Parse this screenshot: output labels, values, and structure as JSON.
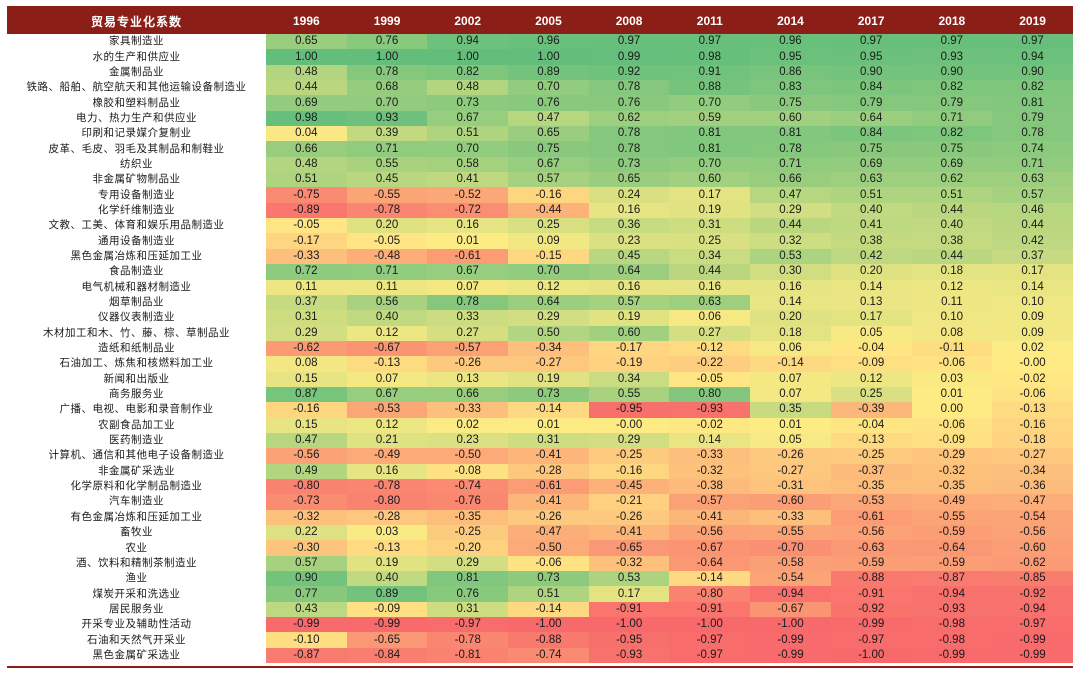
{
  "chart_data": {
    "type": "heatmap",
    "row_header": "贸易专业化系数",
    "columns": [
      "1996",
      "1999",
      "2002",
      "2005",
      "2008",
      "2011",
      "2014",
      "2017",
      "2018",
      "2019"
    ],
    "value_range": [
      -1,
      1
    ],
    "colors": {
      "low": "#F8696B",
      "mid": "#FFEB84",
      "high": "#63BE7B",
      "header_bg": "#8B1E16",
      "header_text": "#FFFFFF"
    },
    "rows": [
      {
        "name": "家具制造业",
        "values": [
          "0.65",
          "0.76",
          "0.94",
          "0.96",
          "0.97",
          "0.97",
          "0.96",
          "0.97",
          "0.97",
          "0.97"
        ]
      },
      {
        "name": "水的生产和供应业",
        "values": [
          "1.00",
          "1.00",
          "1.00",
          "1.00",
          "0.99",
          "0.98",
          "0.95",
          "0.95",
          "0.93",
          "0.94"
        ]
      },
      {
        "name": "金属制品业",
        "values": [
          "0.48",
          "0.78",
          "0.82",
          "0.89",
          "0.92",
          "0.91",
          "0.86",
          "0.90",
          "0.90",
          "0.90"
        ]
      },
      {
        "name": "铁路、船舶、航空航天和其他运输设备制造业",
        "values": [
          "0.44",
          "0.68",
          "0.48",
          "0.70",
          "0.78",
          "0.88",
          "0.83",
          "0.84",
          "0.82",
          "0.82"
        ]
      },
      {
        "name": "橡胶和塑料制品业",
        "values": [
          "0.69",
          "0.70",
          "0.73",
          "0.76",
          "0.76",
          "0.70",
          "0.75",
          "0.79",
          "0.79",
          "0.81"
        ]
      },
      {
        "name": "电力、热力生产和供应业",
        "values": [
          "0.98",
          "0.93",
          "0.67",
          "0.47",
          "0.62",
          "0.59",
          "0.60",
          "0.64",
          "0.71",
          "0.79"
        ]
      },
      {
        "name": "印刷和记录媒介复制业",
        "values": [
          "0.04",
          "0.39",
          "0.51",
          "0.65",
          "0.78",
          "0.81",
          "0.81",
          "0.84",
          "0.82",
          "0.78"
        ]
      },
      {
        "name": "皮革、毛皮、羽毛及其制品和制鞋业",
        "values": [
          "0.66",
          "0.71",
          "0.70",
          "0.75",
          "0.78",
          "0.81",
          "0.78",
          "0.75",
          "0.75",
          "0.74"
        ]
      },
      {
        "name": "纺织业",
        "values": [
          "0.48",
          "0.55",
          "0.58",
          "0.67",
          "0.73",
          "0.70",
          "0.71",
          "0.69",
          "0.69",
          "0.71"
        ]
      },
      {
        "name": "非金属矿物制品业",
        "values": [
          "0.51",
          "0.45",
          "0.41",
          "0.57",
          "0.65",
          "0.60",
          "0.66",
          "0.63",
          "0.62",
          "0.63"
        ]
      },
      {
        "name": "专用设备制造业",
        "values": [
          "-0.75",
          "-0.55",
          "-0.52",
          "-0.16",
          "0.24",
          "0.17",
          "0.47",
          "0.51",
          "0.51",
          "0.57"
        ]
      },
      {
        "name": "化学纤维制造业",
        "values": [
          "-0.89",
          "-0.78",
          "-0.72",
          "-0.44",
          "0.16",
          "0.19",
          "0.29",
          "0.40",
          "0.44",
          "0.46"
        ]
      },
      {
        "name": "文教、工美、体育和娱乐用品制造业",
        "values": [
          "-0.05",
          "0.20",
          "0.16",
          "0.25",
          "0.36",
          "0.31",
          "0.44",
          "0.41",
          "0.40",
          "0.44"
        ]
      },
      {
        "name": "通用设备制造业",
        "values": [
          "-0.17",
          "-0.05",
          "0.01",
          "0.09",
          "0.23",
          "0.25",
          "0.32",
          "0.38",
          "0.38",
          "0.42"
        ]
      },
      {
        "name": "黑色金属冶炼和压延加工业",
        "values": [
          "-0.33",
          "-0.48",
          "-0.61",
          "-0.15",
          "0.45",
          "0.34",
          "0.53",
          "0.42",
          "0.44",
          "0.37"
        ]
      },
      {
        "name": "食品制造业",
        "values": [
          "0.72",
          "0.71",
          "0.67",
          "0.70",
          "0.64",
          "0.44",
          "0.30",
          "0.20",
          "0.18",
          "0.17"
        ]
      },
      {
        "name": "电气机械和器材制造业",
        "values": [
          "0.11",
          "0.11",
          "0.07",
          "0.12",
          "0.16",
          "0.16",
          "0.16",
          "0.14",
          "0.12",
          "0.14"
        ]
      },
      {
        "name": "烟草制品业",
        "values": [
          "0.37",
          "0.56",
          "0.78",
          "0.64",
          "0.57",
          "0.63",
          "0.14",
          "0.13",
          "0.11",
          "0.10"
        ]
      },
      {
        "name": "仪器仪表制造业",
        "values": [
          "0.31",
          "0.40",
          "0.33",
          "0.29",
          "0.19",
          "0.06",
          "0.20",
          "0.17",
          "0.10",
          "0.09"
        ]
      },
      {
        "name": "木材加工和木、竹、藤、棕、草制品业",
        "values": [
          "0.29",
          "0.12",
          "0.27",
          "0.50",
          "0.60",
          "0.27",
          "0.18",
          "0.05",
          "0.08",
          "0.09"
        ]
      },
      {
        "name": "造纸和纸制品业",
        "values": [
          "-0.62",
          "-0.67",
          "-0.57",
          "-0.34",
          "-0.17",
          "-0.12",
          "0.06",
          "-0.04",
          "-0.11",
          "0.02"
        ]
      },
      {
        "name": "石油加工、炼焦和核燃料加工业",
        "values": [
          "0.08",
          "-0.13",
          "-0.26",
          "-0.27",
          "-0.19",
          "-0.22",
          "-0.14",
          "-0.09",
          "-0.06",
          "-0.00"
        ]
      },
      {
        "name": "新闻和出版业",
        "values": [
          "0.15",
          "0.07",
          "0.13",
          "0.19",
          "0.34",
          "-0.05",
          "0.07",
          "0.12",
          "0.03",
          "-0.02"
        ]
      },
      {
        "name": "商务服务业",
        "values": [
          "0.87",
          "0.67",
          "0.66",
          "0.73",
          "0.55",
          "0.80",
          "0.07",
          "0.25",
          "0.01",
          "-0.06"
        ]
      },
      {
        "name": "广播、电视、电影和录音制作业",
        "values": [
          "-0.16",
          "-0.53",
          "-0.33",
          "-0.14",
          "-0.95",
          "-0.93",
          "0.35",
          "-0.39",
          "0.00",
          "-0.13"
        ]
      },
      {
        "name": "农副食品加工业",
        "values": [
          "0.15",
          "0.12",
          "0.02",
          "0.01",
          "-0.00",
          "-0.02",
          "0.01",
          "-0.04",
          "-0.06",
          "-0.16"
        ]
      },
      {
        "name": "医药制造业",
        "values": [
          "0.47",
          "0.21",
          "0.23",
          "0.31",
          "0.29",
          "0.14",
          "0.05",
          "-0.13",
          "-0.09",
          "-0.18"
        ]
      },
      {
        "name": "计算机、通信和其他电子设备制造业",
        "values": [
          "-0.56",
          "-0.49",
          "-0.50",
          "-0.41",
          "-0.25",
          "-0.33",
          "-0.26",
          "-0.25",
          "-0.29",
          "-0.27"
        ]
      },
      {
        "name": "非金属矿采选业",
        "values": [
          "0.49",
          "0.16",
          "-0.08",
          "-0.28",
          "-0.16",
          "-0.32",
          "-0.27",
          "-0.37",
          "-0.32",
          "-0.34"
        ]
      },
      {
        "name": "化学原料和化学制品制造业",
        "values": [
          "-0.80",
          "-0.78",
          "-0.74",
          "-0.61",
          "-0.45",
          "-0.38",
          "-0.31",
          "-0.35",
          "-0.35",
          "-0.36"
        ]
      },
      {
        "name": "汽车制造业",
        "values": [
          "-0.73",
          "-0.80",
          "-0.76",
          "-0.41",
          "-0.21",
          "-0.57",
          "-0.60",
          "-0.53",
          "-0.49",
          "-0.47"
        ]
      },
      {
        "name": "有色金属冶炼和压延加工业",
        "values": [
          "-0.32",
          "-0.28",
          "-0.35",
          "-0.26",
          "-0.26",
          "-0.41",
          "-0.33",
          "-0.61",
          "-0.55",
          "-0.54"
        ]
      },
      {
        "name": "畜牧业",
        "values": [
          "0.22",
          "0.03",
          "-0.25",
          "-0.47",
          "-0.41",
          "-0.56",
          "-0.55",
          "-0.56",
          "-0.59",
          "-0.56"
        ]
      },
      {
        "name": "农业",
        "values": [
          "-0.30",
          "-0.13",
          "-0.20",
          "-0.50",
          "-0.65",
          "-0.67",
          "-0.70",
          "-0.63",
          "-0.64",
          "-0.60"
        ]
      },
      {
        "name": "酒、饮料和精制茶制造业",
        "values": [
          "0.57",
          "0.19",
          "0.29",
          "-0.06",
          "-0.32",
          "-0.64",
          "-0.58",
          "-0.59",
          "-0.59",
          "-0.62"
        ]
      },
      {
        "name": "渔业",
        "values": [
          "0.90",
          "0.40",
          "0.81",
          "0.73",
          "0.53",
          "-0.14",
          "-0.54",
          "-0.88",
          "-0.87",
          "-0.85"
        ]
      },
      {
        "name": "煤炭开采和洗选业",
        "values": [
          "0.77",
          "0.89",
          "0.76",
          "0.51",
          "0.17",
          "-0.80",
          "-0.94",
          "-0.91",
          "-0.94",
          "-0.92"
        ]
      },
      {
        "name": "居民服务业",
        "values": [
          "0.43",
          "-0.09",
          "0.31",
          "-0.14",
          "-0.91",
          "-0.91",
          "-0.67",
          "-0.92",
          "-0.93",
          "-0.94"
        ]
      },
      {
        "name": "开采专业及辅助性活动",
        "values": [
          "-0.99",
          "-0.99",
          "-0.97",
          "-1.00",
          "-1.00",
          "-1.00",
          "-1.00",
          "-0.99",
          "-0.98",
          "-0.97"
        ]
      },
      {
        "name": "石油和天然气开采业",
        "values": [
          "-0.10",
          "-0.65",
          "-0.78",
          "-0.88",
          "-0.95",
          "-0.97",
          "-0.99",
          "-0.97",
          "-0.98",
          "-0.99"
        ]
      },
      {
        "name": "黑色金属矿采选业",
        "values": [
          "-0.87",
          "-0.84",
          "-0.81",
          "-0.74",
          "-0.93",
          "-0.97",
          "-0.99",
          "-1.00",
          "-0.99",
          "-0.99"
        ]
      }
    ]
  }
}
